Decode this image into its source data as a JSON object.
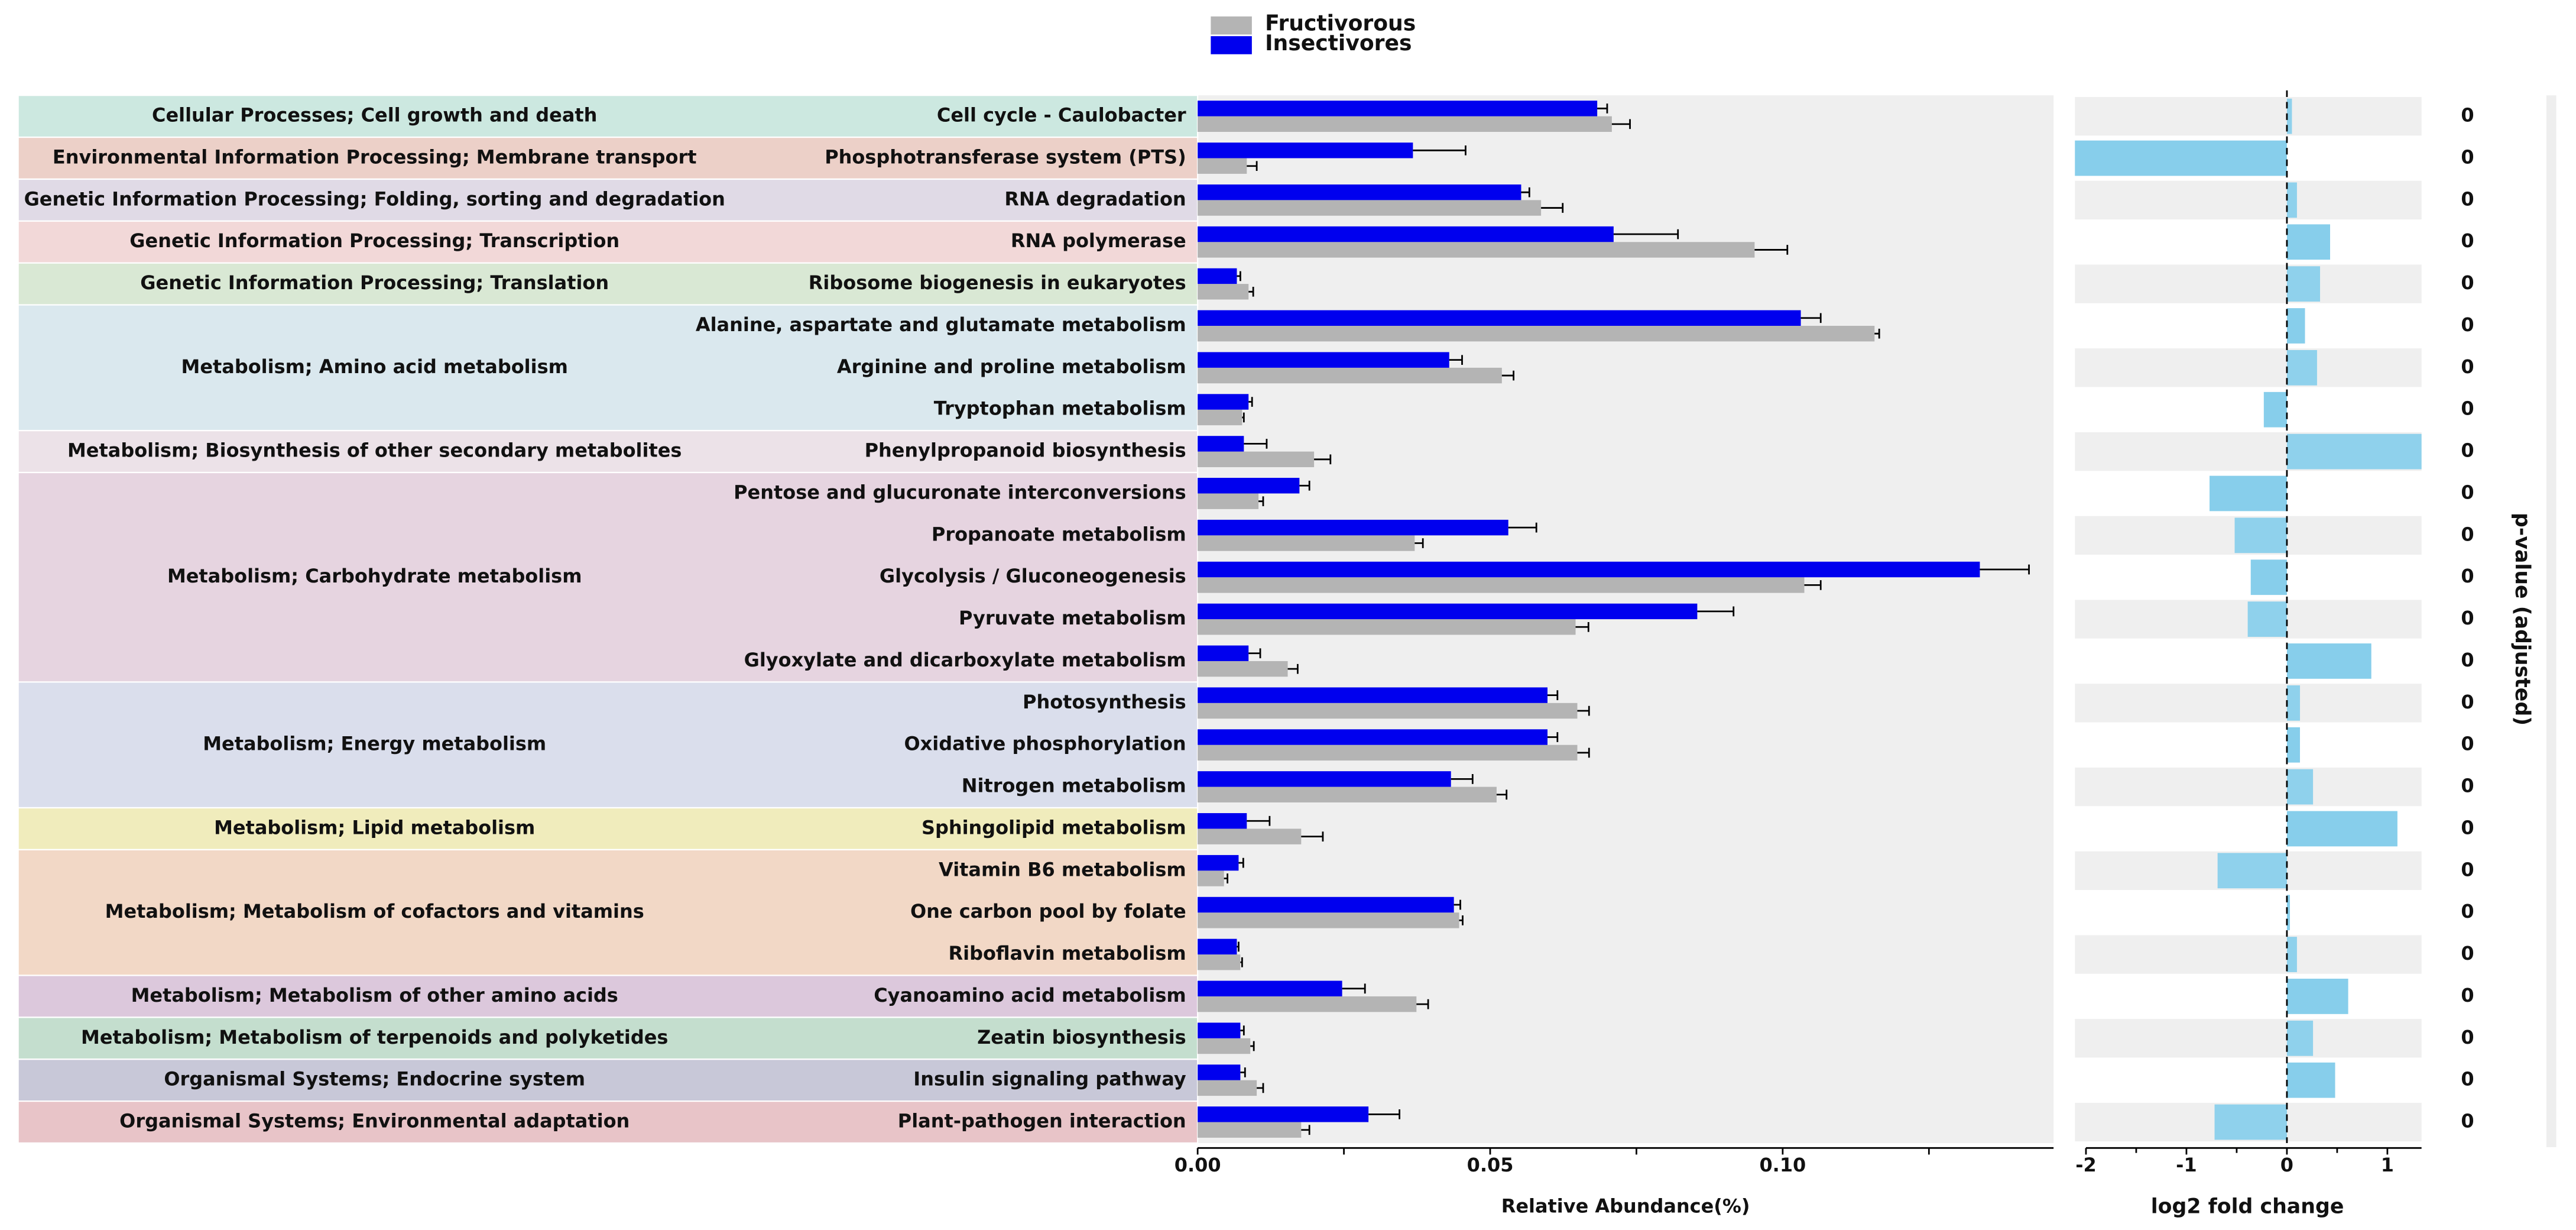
{
  "chart_data": [
    {
      "type": "bar",
      "orientation": "horizontal",
      "categories": [
        "Cell cycle - Caulobacter",
        "Phosphotransferase system (PTS)",
        "RNA degradation",
        "RNA polymerase",
        "Ribosome biogenesis in eukaryotes",
        "Alanine, aspartate and glutamate metabolism",
        "Arginine and proline metabolism",
        "Tryptophan metabolism",
        "Phenylpropanoid biosynthesis",
        "Pentose and glucuronate interconversions",
        "Propanoate metabolism",
        "Glycolysis / Gluconeogenesis",
        "Pyruvate metabolism",
        "Glyoxylate and dicarboxylate metabolism",
        "Photosynthesis",
        "Oxidative phosphorylation",
        "Nitrogen metabolism",
        "Sphingolipid metabolism",
        "Vitamin B6 metabolism",
        "One carbon pool by folate",
        "Riboflavin metabolism",
        "Cyanoamino acid metabolism",
        "Zeatin biosynthesis",
        "Insulin signaling pathway",
        "Plant-pathogen interaction"
      ],
      "groups": [
        {
          "label": "Cellular Processes; Cell growth and death",
          "size": 1,
          "color": "#cce8e0"
        },
        {
          "label": "Environmental Information Processing; Membrane transport",
          "size": 1,
          "color": "#ecd0c8"
        },
        {
          "label": "Genetic Information Processing; Folding, sorting and degradation",
          "size": 1,
          "color": "#e0dae6"
        },
        {
          "label": "Genetic Information Processing; Transcription",
          "size": 1,
          "color": "#f2d8d8"
        },
        {
          "label": "Genetic Information Processing; Translation",
          "size": 1,
          "color": "#d9e8d4"
        },
        {
          "label": "Metabolism; Amino acid metabolism",
          "size": 3,
          "color": "#dae8ee"
        },
        {
          "label": "Metabolism; Biosynthesis of other secondary metabolites",
          "size": 1,
          "color": "#ece2e8"
        },
        {
          "label": "Metabolism; Carbohydrate metabolism",
          "size": 5,
          "color": "#e6d4e0"
        },
        {
          "label": "Metabolism; Energy metabolism",
          "size": 3,
          "color": "#dadeec"
        },
        {
          "label": "Metabolism; Lipid metabolism",
          "size": 1,
          "color": "#f0ecbc"
        },
        {
          "label": "Metabolism; Metabolism of cofactors and vitamins",
          "size": 3,
          "color": "#f2d8c6"
        },
        {
          "label": "Metabolism; Metabolism of other amino acids",
          "size": 1,
          "color": "#dcc8dc"
        },
        {
          "label": "Metabolism; Metabolism of terpenoids and polyketides",
          "size": 1,
          "color": "#c4dece"
        },
        {
          "label": "Organismal Systems; Endocrine system",
          "size": 1,
          "color": "#c8c8d8"
        },
        {
          "label": "Organismal Systems; Environmental adaptation",
          "size": 1,
          "color": "#e8c4c8"
        }
      ],
      "series": [
        {
          "name": "Fructivorous",
          "color": "#b4b4b4",
          "values": [
            0.0708,
            0.0084,
            0.0587,
            0.0952,
            0.0087,
            0.1157,
            0.052,
            0.0076,
            0.0199,
            0.0104,
            0.0371,
            0.1037,
            0.0646,
            0.0154,
            0.0649,
            0.0649,
            0.0511,
            0.0177,
            0.0045,
            0.0447,
            0.0073,
            0.0374,
            0.009,
            0.0101,
            0.0177
          ],
          "errors": [
            0.0031,
            0.0017,
            0.0037,
            0.0056,
            0.0008,
            0.0008,
            0.002,
            0.0003,
            0.0028,
            0.0008,
            0.0014,
            0.0028,
            0.0022,
            0.0017,
            0.002,
            0.002,
            0.0017,
            0.0037,
            0.0006,
            0.0006,
            0.0003,
            0.002,
            0.0006,
            0.0011,
            0.0014
          ]
        },
        {
          "name": "Insectivores",
          "color": "#0000ee",
          "values": [
            0.0683,
            0.0368,
            0.0553,
            0.0711,
            0.0067,
            0.1031,
            0.043,
            0.0087,
            0.0079,
            0.0174,
            0.0531,
            0.1337,
            0.0854,
            0.0087,
            0.0598,
            0.0598,
            0.0433,
            0.0084,
            0.007,
            0.0438,
            0.0067,
            0.0247,
            0.0073,
            0.0073,
            0.0292
          ],
          "errors": [
            0.0017,
            0.009,
            0.0014,
            0.011,
            0.0006,
            0.0034,
            0.0022,
            0.0006,
            0.0039,
            0.0017,
            0.0048,
            0.0084,
            0.0062,
            0.002,
            0.0017,
            0.0017,
            0.0037,
            0.0039,
            0.0008,
            0.0011,
            0.0003,
            0.0039,
            0.0006,
            0.0008,
            0.0053
          ]
        }
      ],
      "xlabel": "Relative Abundance(%)",
      "xlim": [
        0,
        0.1463
      ],
      "xticks": [
        {
          "value": 0,
          "label": "0.00"
        },
        {
          "value": 0.05,
          "label": "0.05"
        },
        {
          "value": 0.1,
          "label": "0.10"
        }
      ],
      "xminorticks": [
        0.025,
        0.075,
        0.125
      ],
      "background": "#efefef"
    },
    {
      "type": "bar",
      "orientation": "horizontal",
      "values": [
        0.05,
        -2.11,
        0.1,
        0.43,
        0.33,
        0.18,
        0.3,
        -0.23,
        1.34,
        -0.77,
        -0.52,
        -0.36,
        -0.39,
        0.84,
        0.13,
        0.13,
        0.26,
        1.1,
        -0.69,
        0.03,
        0.1,
        0.61,
        0.26,
        0.48,
        -0.72
      ],
      "color": "#87ceeb",
      "xlabel": "log2 fold change",
      "xlim": [
        -2.11,
        1.34
      ],
      "xticks": [
        -2,
        -1,
        0,
        1
      ],
      "p_values": [
        0,
        0,
        0,
        0,
        0,
        0,
        0,
        0,
        0,
        0,
        0,
        0,
        0,
        0,
        0,
        0,
        0,
        0,
        0,
        0,
        0,
        0,
        0,
        0,
        0
      ],
      "p_label": "p-value (adjusted)"
    }
  ]
}
